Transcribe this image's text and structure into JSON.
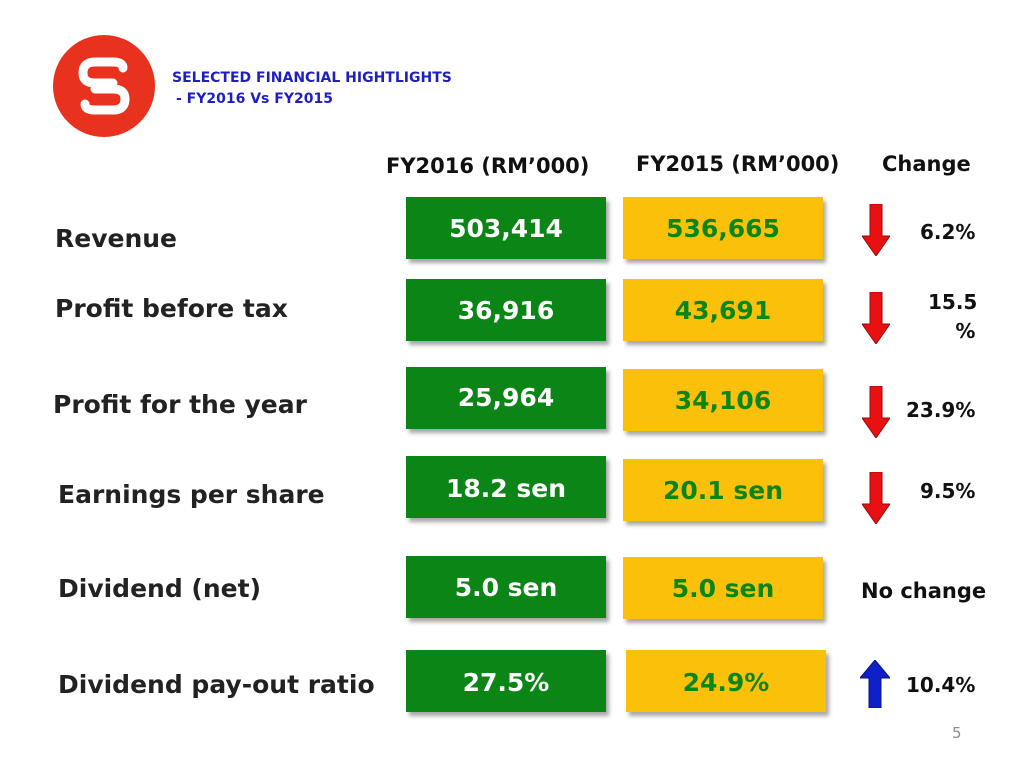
{
  "header": {
    "logo": "sen-logo",
    "title_line1": "SELECTED FINANCIAL HIGHTLIGHTS",
    "title_line2": "- FY2016 Vs FY2015"
  },
  "columns": {
    "fy2016": "FY2016 (RM’000)",
    "fy2015": "FY2015 (RM’000)",
    "change": "Change"
  },
  "rows": [
    {
      "label": "Revenue",
      "fy2016": "503,414",
      "fy2015": "536,665",
      "change": "6.2%",
      "direction": "down"
    },
    {
      "label": "Profit before tax",
      "fy2016": "36,916",
      "fy2015": "43,691",
      "change_line1": "15.5",
      "change_line2": "%",
      "direction": "down"
    },
    {
      "label": "Profit for the year",
      "fy2016": "25,964",
      "fy2015": "34,106",
      "change": "23.9%",
      "direction": "down"
    },
    {
      "label": "Earnings per share",
      "fy2016": "18.2 sen",
      "fy2015": "20.1 sen",
      "change": "9.5%",
      "direction": "down"
    },
    {
      "label": "Dividend (net)",
      "fy2016": "5.0 sen",
      "fy2015": "5.0 sen",
      "change": "No change",
      "direction": "none"
    },
    {
      "label": "Dividend pay-out ratio",
      "fy2016": "27.5%",
      "fy2015": "24.9%",
      "change": "10.4%",
      "direction": "up"
    }
  ],
  "colors": {
    "fy2016_box": "#0a8516",
    "fy2015_box": "#fbc10a",
    "down_arrow": "#e81010",
    "up_arrow": "#1020c8",
    "title": "#1f1fbf",
    "logo": "#e8321e"
  },
  "page_number": "5"
}
